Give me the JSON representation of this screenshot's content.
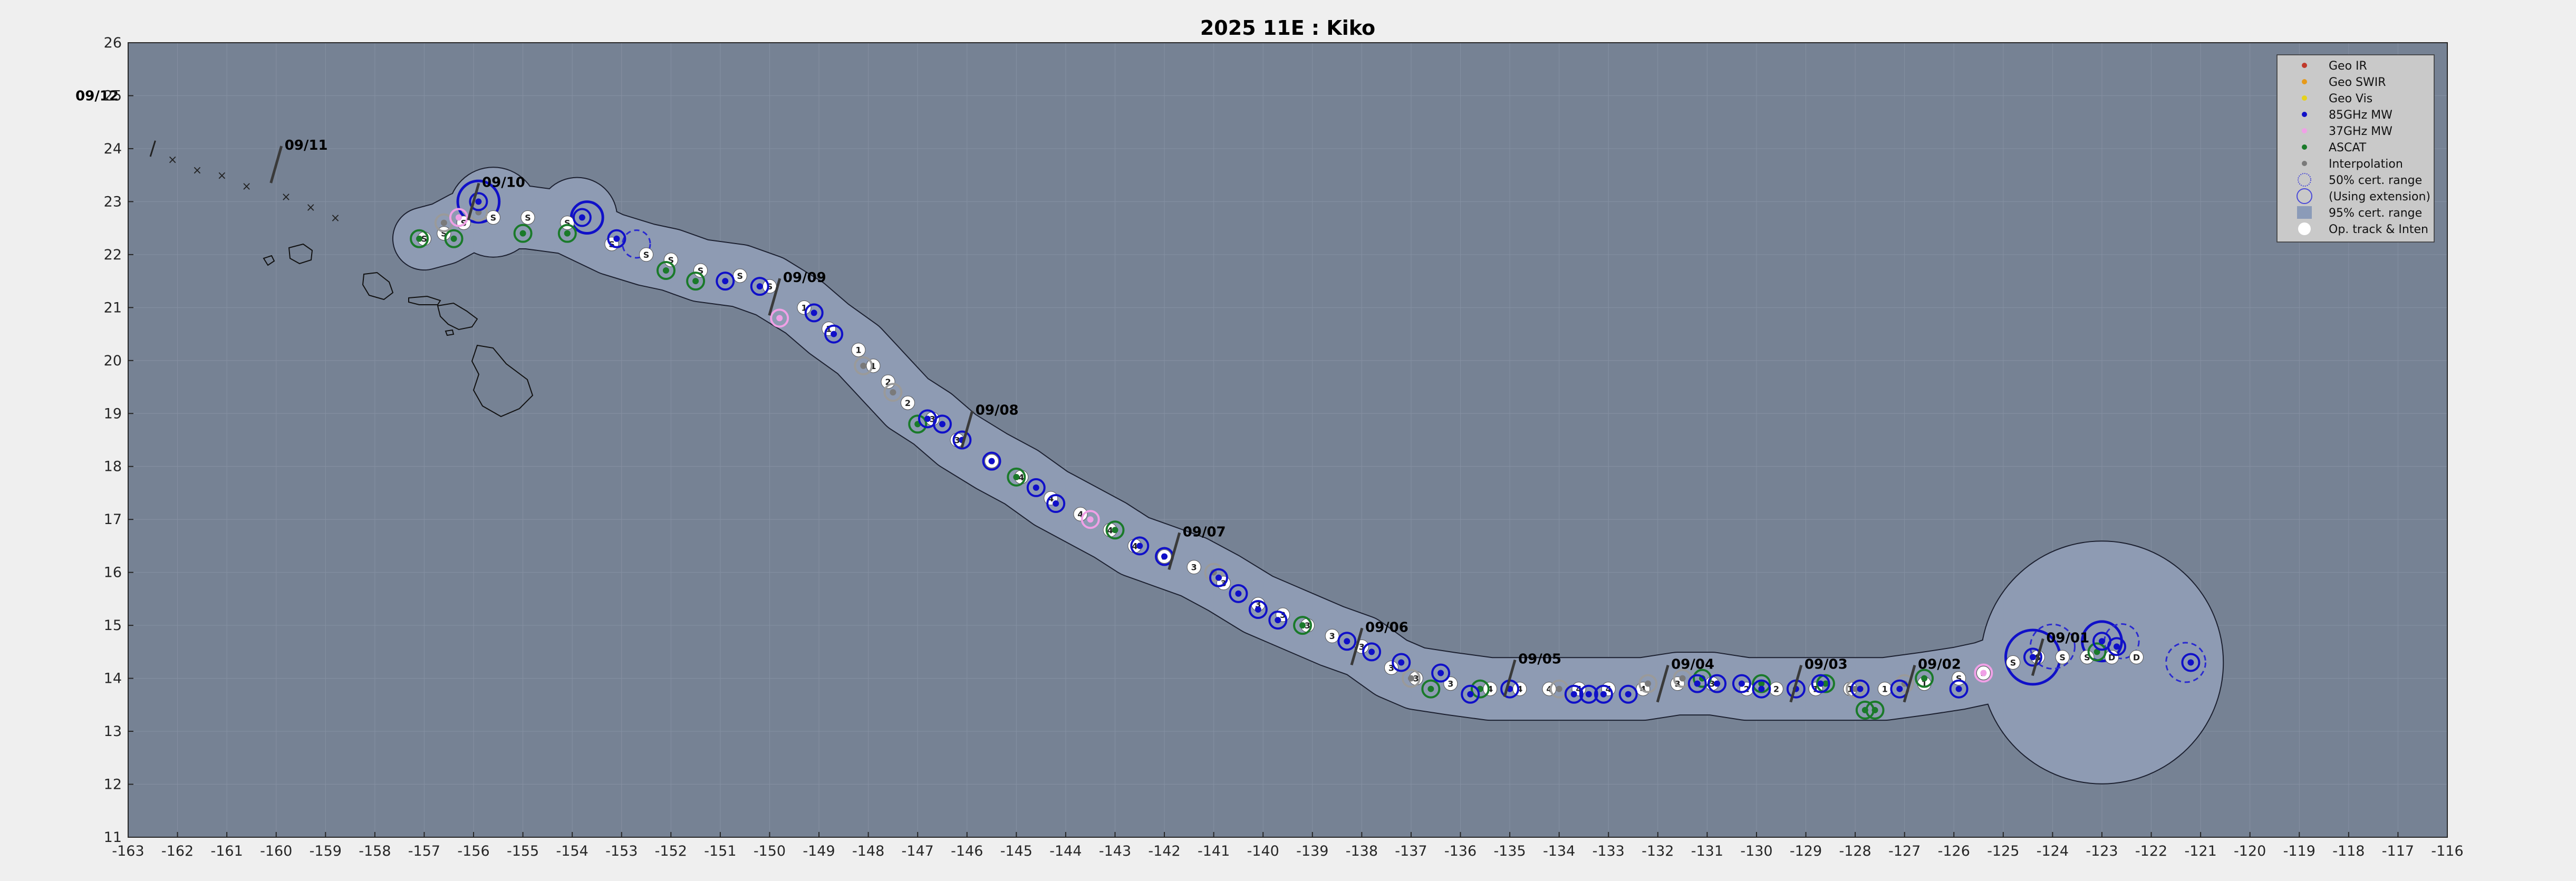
{
  "chart_data": {
    "type": "scatter",
    "title": "2025  11E :  Kiko",
    "xlabel": "",
    "ylabel": "",
    "xlim": [
      -163,
      -116
    ],
    "ylim": [
      11,
      26
    ],
    "xticks": [
      "-163",
      "-162",
      "-161",
      "-160",
      "-159",
      "-158",
      "-157",
      "-156",
      "-155",
      "-154",
      "-153",
      "-152",
      "-151",
      "-150",
      "-149",
      "-148",
      "-147",
      "-146",
      "-145",
      "-144",
      "-143",
      "-142",
      "-141",
      "-140",
      "-139",
      "-138",
      "-137",
      "-136",
      "-135",
      "-134",
      "-133",
      "-132",
      "-131",
      "-130",
      "-129",
      "-128",
      "-127",
      "-126",
      "-125",
      "-124",
      "-123",
      "-122",
      "-121",
      "-120",
      "-119",
      "-118",
      "-117",
      "-116"
    ],
    "yticks": [
      "11",
      "12",
      "13",
      "14",
      "15",
      "16",
      "17",
      "18",
      "19",
      "20",
      "21",
      "22",
      "23",
      "24",
      "25",
      "26"
    ],
    "grid": true,
    "legend_position": "top-right",
    "legend": [
      {
        "label": "Geo IR",
        "color": "#c0392b",
        "marker": "dot"
      },
      {
        "label": "Geo SWIR",
        "color": "#e69a1a",
        "marker": "dot"
      },
      {
        "label": "Geo Vis",
        "color": "#e6d21a",
        "marker": "dot"
      },
      {
        "label": "85GHz MW",
        "color": "#1010c8",
        "marker": "dot"
      },
      {
        "label": "37GHz MW",
        "color": "#f0a0e6",
        "marker": "dot"
      },
      {
        "label": "ASCAT",
        "color": "#1a7a2a",
        "marker": "dot"
      },
      {
        "label": "Interpolation",
        "color": "#7a7a7a",
        "marker": "dot"
      },
      {
        "label": "50% cert. range",
        "color": "#4a4ad8",
        "marker": "dashed-circle"
      },
      {
        "label": "(Using extension)",
        "color": "#4a4ad8",
        "marker": "circle"
      },
      {
        "label": "95% cert. range",
        "color": "#8b9bb8",
        "marker": "square"
      },
      {
        "label": "Op. track & Inten",
        "color": "#ffffff",
        "marker": "white-circle"
      }
    ],
    "date_marks": [
      {
        "label": "09/01",
        "x": -124.3,
        "y": 14.4
      },
      {
        "label": "09/02",
        "x": -126.9,
        "y": 13.9
      },
      {
        "label": "09/03",
        "x": -129.2,
        "y": 13.9
      },
      {
        "label": "09/04",
        "x": -131.9,
        "y": 13.9
      },
      {
        "label": "09/05",
        "x": -135.0,
        "y": 14.0
      },
      {
        "label": "09/06",
        "x": -138.1,
        "y": 14.6
      },
      {
        "label": "09/07",
        "x": -141.8,
        "y": 16.4
      },
      {
        "label": "09/08",
        "x": -146.0,
        "y": 18.7
      },
      {
        "label": "09/09",
        "x": -149.9,
        "y": 21.2
      },
      {
        "label": "09/10",
        "x": -156.0,
        "y": 23.0
      },
      {
        "label": "09/11",
        "x": -160.0,
        "y": 23.7
      },
      {
        "label": "09/12",
        "x": -163.0,
        "y": 25.0
      }
    ],
    "op_track": [
      {
        "x": -122.3,
        "y": 14.4,
        "i": "D"
      },
      {
        "x": -122.8,
        "y": 14.4,
        "i": "D"
      },
      {
        "x": -123.3,
        "y": 14.4,
        "i": "S"
      },
      {
        "x": -123.8,
        "y": 14.4,
        "i": "S"
      },
      {
        "x": -124.3,
        "y": 14.4,
        "i": "S"
      },
      {
        "x": -124.8,
        "y": 14.3,
        "i": "S"
      },
      {
        "x": -125.4,
        "y": 14.1,
        "i": "S"
      },
      {
        "x": -125.9,
        "y": 14.0,
        "i": "S"
      },
      {
        "x": -126.6,
        "y": 13.9,
        "i": "1"
      },
      {
        "x": -127.4,
        "y": 13.8,
        "i": "1"
      },
      {
        "x": -128.1,
        "y": 13.8,
        "i": "1"
      },
      {
        "x": -128.8,
        "y": 13.8,
        "i": "1"
      },
      {
        "x": -129.6,
        "y": 13.8,
        "i": "2"
      },
      {
        "x": -130.2,
        "y": 13.8,
        "i": "2"
      },
      {
        "x": -130.9,
        "y": 13.9,
        "i": "3"
      },
      {
        "x": -131.6,
        "y": 13.9,
        "i": "3"
      },
      {
        "x": -132.3,
        "y": 13.8,
        "i": "4"
      },
      {
        "x": -133.0,
        "y": 13.8,
        "i": "4"
      },
      {
        "x": -133.6,
        "y": 13.8,
        "i": "4"
      },
      {
        "x": -134.2,
        "y": 13.8,
        "i": "4"
      },
      {
        "x": -134.8,
        "y": 13.8,
        "i": "4"
      },
      {
        "x": -135.4,
        "y": 13.8,
        "i": "4"
      },
      {
        "x": -136.2,
        "y": 13.9,
        "i": "3"
      },
      {
        "x": -136.9,
        "y": 14.0,
        "i": "3"
      },
      {
        "x": -137.4,
        "y": 14.2,
        "i": "3"
      },
      {
        "x": -138.0,
        "y": 14.6,
        "i": "3"
      },
      {
        "x": -138.6,
        "y": 14.8,
        "i": "3"
      },
      {
        "x": -139.1,
        "y": 15.0,
        "i": "3"
      },
      {
        "x": -139.6,
        "y": 15.2,
        "i": "3"
      },
      {
        "x": -140.1,
        "y": 15.4,
        "i": "3"
      },
      {
        "x": -140.8,
        "y": 15.8,
        "i": "3"
      },
      {
        "x": -141.4,
        "y": 16.1,
        "i": "3"
      },
      {
        "x": -142.0,
        "y": 16.3,
        "i": "3"
      },
      {
        "x": -142.6,
        "y": 16.5,
        "i": "4"
      },
      {
        "x": -143.1,
        "y": 16.8,
        "i": "4"
      },
      {
        "x": -143.7,
        "y": 17.1,
        "i": "4"
      },
      {
        "x": -144.3,
        "y": 17.4,
        "i": "4"
      },
      {
        "x": -144.9,
        "y": 17.8,
        "i": "4"
      },
      {
        "x": -145.5,
        "y": 18.1,
        "i": "4"
      },
      {
        "x": -146.2,
        "y": 18.5,
        "i": "3"
      },
      {
        "x": -146.7,
        "y": 18.9,
        "i": "3"
      },
      {
        "x": -147.2,
        "y": 19.2,
        "i": "2"
      },
      {
        "x": -147.6,
        "y": 19.6,
        "i": "2"
      },
      {
        "x": -147.9,
        "y": 19.9,
        "i": "1"
      },
      {
        "x": -148.2,
        "y": 20.2,
        "i": "1"
      },
      {
        "x": -148.8,
        "y": 20.6,
        "i": "1"
      },
      {
        "x": -149.3,
        "y": 21.0,
        "i": "1"
      },
      {
        "x": -150.0,
        "y": 21.4,
        "i": "S"
      },
      {
        "x": -150.6,
        "y": 21.6,
        "i": "S"
      },
      {
        "x": -151.4,
        "y": 21.7,
        "i": "S"
      },
      {
        "x": -152.0,
        "y": 21.9,
        "i": "S"
      },
      {
        "x": -152.5,
        "y": 22.0,
        "i": "S"
      },
      {
        "x": -153.2,
        "y": 22.2,
        "i": "S"
      },
      {
        "x": -154.1,
        "y": 22.6,
        "i": "S"
      },
      {
        "x": -154.9,
        "y": 22.7,
        "i": "S"
      },
      {
        "x": -155.6,
        "y": 22.7,
        "i": "S"
      },
      {
        "x": -156.2,
        "y": 22.6,
        "i": "S"
      },
      {
        "x": -156.6,
        "y": 22.4,
        "i": "S"
      },
      {
        "x": -157.0,
        "y": 22.3,
        "i": "S"
      }
    ],
    "mw_85ghz": [
      {
        "x": -121.2,
        "y": 14.3
      },
      {
        "x": -122.7,
        "y": 14.6
      },
      {
        "x": -123.0,
        "y": 14.7
      },
      {
        "x": -124.4,
        "y": 14.4
      },
      {
        "x": -125.9,
        "y": 13.8
      },
      {
        "x": -127.1,
        "y": 13.8
      },
      {
        "x": -127.9,
        "y": 13.8
      },
      {
        "x": -128.7,
        "y": 13.9
      },
      {
        "x": -129.2,
        "y": 13.8
      },
      {
        "x": -129.9,
        "y": 13.8
      },
      {
        "x": -130.3,
        "y": 13.9
      },
      {
        "x": -130.8,
        "y": 13.9
      },
      {
        "x": -131.2,
        "y": 13.9
      },
      {
        "x": -132.6,
        "y": 13.7
      },
      {
        "x": -133.1,
        "y": 13.7
      },
      {
        "x": -133.4,
        "y": 13.7
      },
      {
        "x": -133.7,
        "y": 13.7
      },
      {
        "x": -135.0,
        "y": 13.8
      },
      {
        "x": -135.8,
        "y": 13.7
      },
      {
        "x": -136.4,
        "y": 14.1
      },
      {
        "x": -137.2,
        "y": 14.3
      },
      {
        "x": -137.8,
        "y": 14.5
      },
      {
        "x": -138.3,
        "y": 14.7
      },
      {
        "x": -139.7,
        "y": 15.1
      },
      {
        "x": -140.1,
        "y": 15.3
      },
      {
        "x": -140.5,
        "y": 15.6
      },
      {
        "x": -140.9,
        "y": 15.9
      },
      {
        "x": -142.0,
        "y": 16.3
      },
      {
        "x": -142.5,
        "y": 16.5
      },
      {
        "x": -144.2,
        "y": 17.3
      },
      {
        "x": -144.6,
        "y": 17.6
      },
      {
        "x": -145.5,
        "y": 18.1
      },
      {
        "x": -146.1,
        "y": 18.5
      },
      {
        "x": -146.5,
        "y": 18.8
      },
      {
        "x": -146.8,
        "y": 18.9
      },
      {
        "x": -148.7,
        "y": 20.5
      },
      {
        "x": -149.1,
        "y": 20.9
      },
      {
        "x": -150.2,
        "y": 21.4
      },
      {
        "x": -150.9,
        "y": 21.5
      },
      {
        "x": -153.1,
        "y": 22.3
      },
      {
        "x": -153.8,
        "y": 22.7
      },
      {
        "x": -155.9,
        "y": 23.0
      }
    ],
    "mw_37ghz": [
      {
        "x": -125.4,
        "y": 14.1
      },
      {
        "x": -143.5,
        "y": 17.0
      },
      {
        "x": -149.8,
        "y": 20.8
      },
      {
        "x": -156.3,
        "y": 22.7
      }
    ],
    "ascat": [
      {
        "x": -123.1,
        "y": 14.5
      },
      {
        "x": -126.6,
        "y": 14.0
      },
      {
        "x": -127.6,
        "y": 13.4
      },
      {
        "x": -127.8,
        "y": 13.4
      },
      {
        "x": -128.6,
        "y": 13.9
      },
      {
        "x": -129.9,
        "y": 13.9
      },
      {
        "x": -131.1,
        "y": 14.0
      },
      {
        "x": -135.6,
        "y": 13.8
      },
      {
        "x": -136.6,
        "y": 13.8
      },
      {
        "x": -139.2,
        "y": 15.0
      },
      {
        "x": -143.0,
        "y": 16.8
      },
      {
        "x": -145.0,
        "y": 17.8
      },
      {
        "x": -147.0,
        "y": 18.8
      },
      {
        "x": -151.5,
        "y": 21.5
      },
      {
        "x": -152.1,
        "y": 21.7
      },
      {
        "x": -154.1,
        "y": 22.4
      },
      {
        "x": -155.0,
        "y": 22.4
      },
      {
        "x": -156.4,
        "y": 22.3
      },
      {
        "x": -157.1,
        "y": 22.3
      }
    ],
    "interpolation": [
      {
        "x": -127.0,
        "y": 13.9
      },
      {
        "x": -128.0,
        "y": 13.8
      },
      {
        "x": -131.5,
        "y": 14.0
      },
      {
        "x": -132.2,
        "y": 13.9
      },
      {
        "x": -134.0,
        "y": 13.8
      },
      {
        "x": -137.0,
        "y": 14.0
      },
      {
        "x": -141.0,
        "y": 16.0
      },
      {
        "x": -147.5,
        "y": 19.4
      },
      {
        "x": -148.1,
        "y": 19.9
      },
      {
        "x": -155.9,
        "y": 22.8
      },
      {
        "x": -156.6,
        "y": 22.6
      }
    ]
  }
}
